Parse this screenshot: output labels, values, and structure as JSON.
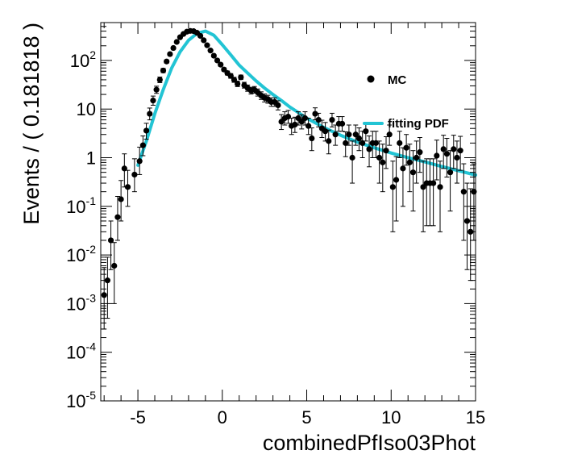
{
  "chart_data": {
    "type": "scatter",
    "xlabel": "combinedPfIso03Phot",
    "ylabel": "Events / ( 0.181818 )",
    "xlim": [
      -7.2,
      15
    ],
    "ylim": [
      1e-05,
      600
    ],
    "yscale": "log",
    "grid": false,
    "legend_position": "top-right",
    "x_ticks": [
      {
        "value": -5,
        "label": "-5"
      },
      {
        "value": 0,
        "label": "0"
      },
      {
        "value": 5,
        "label": "5"
      },
      {
        "value": 10,
        "label": "10"
      },
      {
        "value": 15,
        "label": "15"
      }
    ],
    "y_ticks": [
      {
        "value": 100,
        "base": "10",
        "exp": "2"
      },
      {
        "value": 10,
        "base": "10",
        "exp": ""
      },
      {
        "value": 1,
        "base": "1",
        "exp": ""
      },
      {
        "value": 0.1,
        "base": "10",
        "exp": "-1"
      },
      {
        "value": 0.01,
        "base": "10",
        "exp": "-2"
      },
      {
        "value": 0.001,
        "base": "10",
        "exp": "-3"
      },
      {
        "value": 0.0001,
        "base": "10",
        "exp": "-4"
      },
      {
        "value": 1e-05,
        "base": "10",
        "exp": "-5"
      }
    ],
    "series": [
      {
        "name": "MC",
        "style": "points",
        "color": "#000000",
        "x": [
          -7.0,
          -6.8,
          -6.6,
          -6.4,
          -6.2,
          -6.0,
          -5.8,
          -5.6,
          -5.2,
          -4.9,
          -4.7,
          -4.5,
          -4.3,
          -4.1,
          -3.9,
          -3.7,
          -3.5,
          -3.3,
          -3.1,
          -2.9,
          -2.7,
          -2.5,
          -2.3,
          -2.1,
          -1.9,
          -1.7,
          -1.5,
          -1.3,
          -1.1,
          -0.9,
          -0.7,
          -0.5,
          -0.3,
          -0.1,
          0.1,
          0.3,
          0.5,
          0.7,
          0.9,
          1.1,
          1.3,
          1.5,
          1.7,
          1.9,
          2.1,
          2.3,
          2.5,
          2.7,
          2.9,
          3.1,
          3.3,
          3.5,
          3.7,
          3.9,
          4.1,
          4.3,
          4.5,
          4.7,
          4.9,
          5.1,
          5.3,
          5.5,
          5.7,
          5.9,
          6.1,
          6.3,
          6.5,
          6.7,
          6.9,
          7.1,
          7.3,
          7.5,
          7.7,
          7.9,
          8.1,
          8.3,
          8.5,
          8.7,
          8.9,
          9.1,
          9.3,
          9.5,
          9.7,
          9.9,
          10.1,
          10.3,
          10.5,
          10.7,
          10.9,
          11.1,
          11.3,
          11.5,
          11.7,
          11.9,
          12.1,
          12.3,
          12.5,
          12.7,
          12.9,
          13.1,
          13.3,
          13.5,
          13.7,
          13.9,
          14.1,
          14.3,
          14.5,
          14.7,
          14.9
        ],
        "y": [
          0.0015,
          0.003,
          0.02,
          0.006,
          0.06,
          0.14,
          0.6,
          0.25,
          0.45,
          0.85,
          1.8,
          3.6,
          8,
          15,
          25,
          40,
          62,
          95,
          135,
          180,
          240,
          300,
          350,
          390,
          405,
          400,
          370,
          320,
          260,
          205,
          160,
          125,
          100,
          82,
          65,
          55,
          48,
          40,
          33,
          45,
          31,
          27,
          24,
          25,
          22,
          19,
          17,
          16,
          14,
          14,
          12,
          5.5,
          6.5,
          7,
          4.5,
          4.8,
          6.5,
          5.5,
          6.5,
          4.5,
          2.5,
          8,
          6,
          4,
          3.5,
          2.2,
          6,
          3,
          5,
          5,
          2,
          3,
          1,
          3,
          2.5,
          2,
          3.5,
          1.5,
          2,
          2,
          1,
          0.8,
          1.4,
          3,
          0.25,
          0.35,
          2,
          0.6,
          1.6,
          0.8,
          0.5,
          1,
          1.3,
          0.25,
          0.3,
          0.3,
          0.3,
          1.1,
          0.25,
          1.5,
          1.2,
          0.5,
          1.5,
          1,
          1.4,
          0.2,
          0.05,
          0.03,
          0.2
        ],
        "err_lo": [
          0.0012,
          0.0025,
          0.015,
          0.005,
          0.04,
          0.09,
          0.35,
          0.15,
          0.25,
          0.4,
          0.7,
          1.2,
          2,
          3,
          4,
          5,
          6,
          7,
          8,
          9,
          10,
          11,
          12,
          13,
          13,
          13,
          12,
          11,
          10,
          9,
          8,
          7,
          6,
          6,
          5,
          5,
          5,
          4.5,
          4,
          4.5,
          4,
          3.8,
          3.6,
          3.7,
          3.5,
          3.2,
          3,
          2.8,
          2.6,
          2.6,
          2.4,
          1.7,
          1.8,
          1.9,
          1.5,
          1.5,
          1.8,
          1.6,
          1.8,
          1.5,
          1.1,
          2,
          1.7,
          1.4,
          1.3,
          1,
          1.7,
          1.2,
          1.5,
          1.5,
          0.95,
          1.2,
          0.7,
          1.2,
          1.1,
          1,
          1.3,
          0.85,
          1,
          1,
          0.7,
          0.6,
          0.8,
          1.2,
          0.22,
          0.3,
          1,
          0.5,
          0.9,
          0.6,
          0.42,
          0.7,
          0.8,
          0.22,
          0.26,
          0.26,
          0.26,
          0.75,
          0.22,
          0.9,
          0.8,
          0.42,
          0.9,
          0.7,
          0.85,
          0.18,
          0.045,
          0.027,
          0.18
        ],
        "err_hi": [
          0.004,
          0.006,
          0.03,
          0.012,
          0.1,
          0.2,
          0.6,
          0.3,
          0.5,
          0.8,
          1,
          1.5,
          2.5,
          3.5,
          4.5,
          5.5,
          6.5,
          7.5,
          8.5,
          9.5,
          10.5,
          11.5,
          12.5,
          13.5,
          13.5,
          13.5,
          12.5,
          11.5,
          10.5,
          9.5,
          8.5,
          7.5,
          6.5,
          6.5,
          5.5,
          5.5,
          5.5,
          5,
          4.5,
          5,
          4.5,
          4.2,
          4,
          4.1,
          3.9,
          3.6,
          3.4,
          3.2,
          3,
          3,
          2.8,
          2.2,
          2.3,
          2.4,
          2,
          2,
          2.3,
          2.1,
          2.3,
          2,
          1.6,
          2.6,
          2.2,
          1.9,
          1.8,
          1.5,
          2.2,
          1.7,
          2,
          2,
          1.4,
          1.7,
          1.2,
          1.7,
          1.6,
          1.5,
          1.8,
          1.3,
          1.5,
          1.5,
          1.2,
          1.1,
          1.3,
          1.7,
          0.6,
          0.7,
          1.5,
          1,
          1.4,
          1.1,
          0.9,
          1.2,
          1.3,
          0.6,
          0.65,
          0.65,
          0.65,
          1.2,
          0.6,
          1.4,
          1.3,
          0.9,
          1.4,
          1.2,
          1.35,
          0.55,
          0.25,
          0.2,
          0.55
        ]
      },
      {
        "name": "fitting PDF",
        "style": "line",
        "color": "#22c4d4",
        "x": [
          -5.0,
          -4.5,
          -4.0,
          -3.5,
          -3.0,
          -2.5,
          -2.0,
          -1.5,
          -1.0,
          -0.5,
          0.0,
          0.5,
          1.0,
          1.5,
          2.0,
          2.5,
          3.0,
          3.5,
          4.0,
          4.5,
          5.0,
          6.0,
          7.0,
          8.0,
          9.0,
          10.0,
          11.0,
          12.0,
          13.0,
          14.0,
          15.0
        ],
        "y": [
          0.7,
          2.2,
          8,
          25,
          70,
          150,
          260,
          360,
          400,
          330,
          210,
          130,
          80,
          55,
          38,
          27,
          20,
          15,
          11,
          8.5,
          6.5,
          4.2,
          2.9,
          2.1,
          1.6,
          1.25,
          1.0,
          0.82,
          0.66,
          0.54,
          0.44
        ]
      }
    ]
  }
}
